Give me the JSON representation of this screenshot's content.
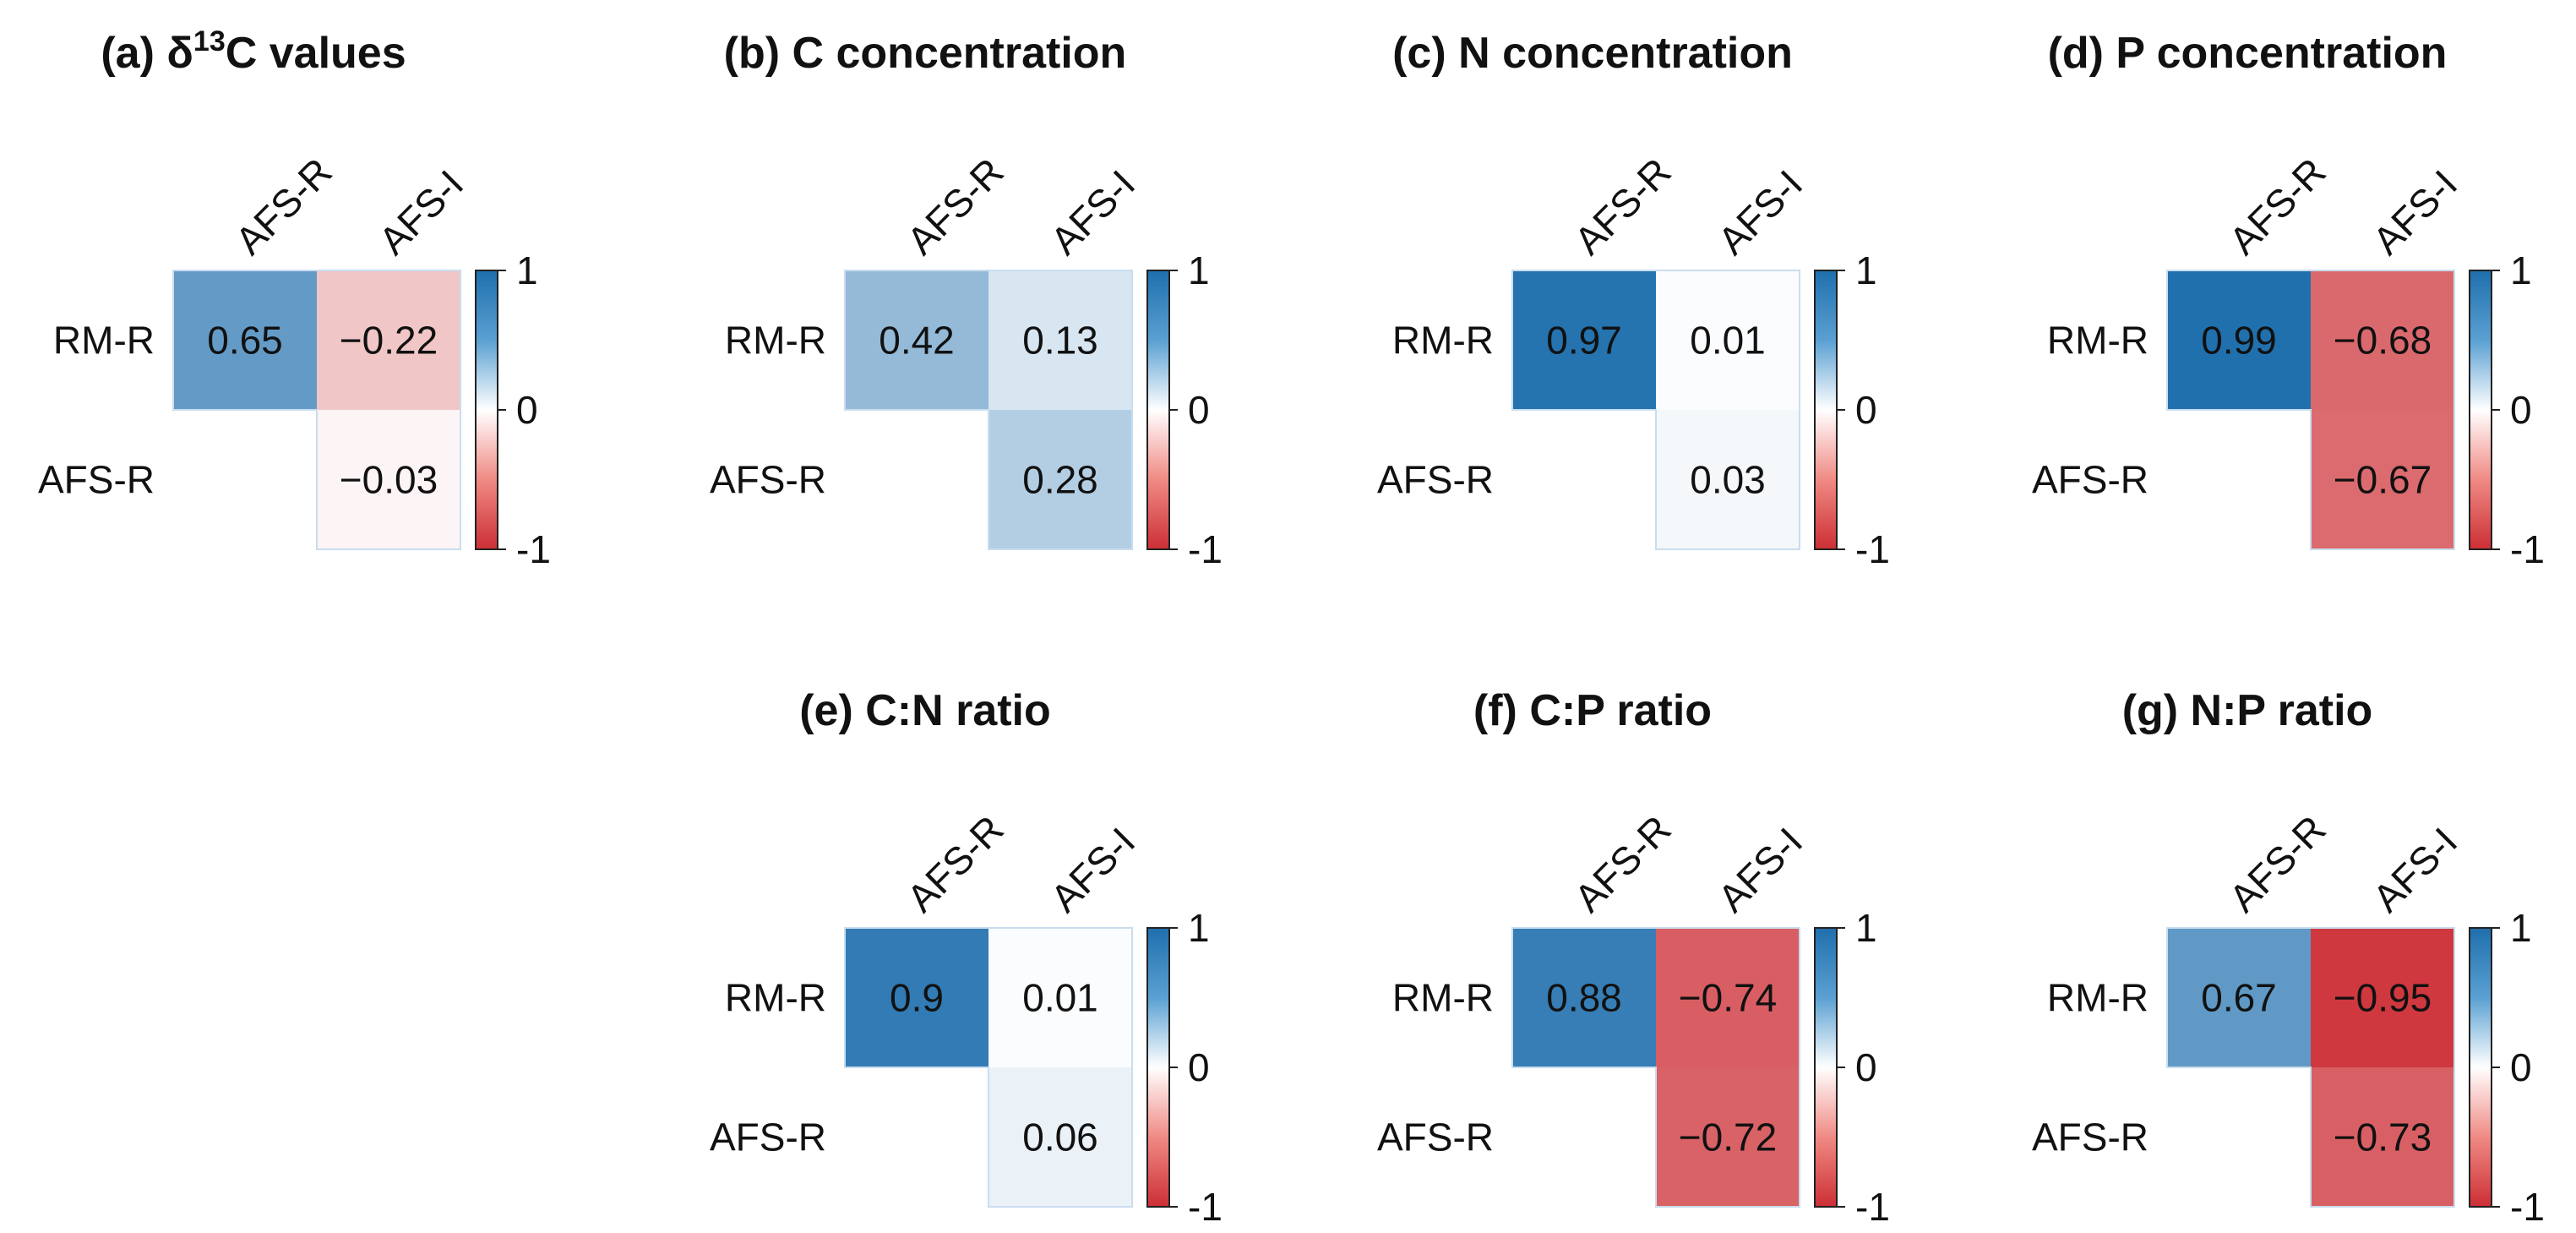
{
  "colors": {
    "positive": "#1f6fad",
    "neutral": "#ffffff",
    "negative": "#cc2f35",
    "text": "#111111"
  },
  "chart_data": [
    {
      "type": "heatmap",
      "title": "(a) δ13C values",
      "title_parts": {
        "prefix": "(a) δ",
        "superscript": "13",
        "suffix": "C values"
      },
      "row_labels": [
        "RM-R",
        "AFS-R"
      ],
      "col_labels": [
        "AFS-R",
        "AFS-I"
      ],
      "cells": [
        {
          "row": 0,
          "col": 0,
          "value": 0.65,
          "label": "0.65"
        },
        {
          "row": 0,
          "col": 1,
          "value": -0.22,
          "label": "−0.22"
        },
        {
          "row": 1,
          "col": 1,
          "value": -0.03,
          "label": "−0.03"
        }
      ],
      "colorbar": {
        "min": -1,
        "max": 1,
        "ticks": [
          "1",
          "0",
          "-1"
        ]
      }
    },
    {
      "type": "heatmap",
      "title": "(b) C concentration",
      "row_labels": [
        "RM-R",
        "AFS-R"
      ],
      "col_labels": [
        "AFS-R",
        "AFS-I"
      ],
      "cells": [
        {
          "row": 0,
          "col": 0,
          "value": 0.42,
          "label": "0.42"
        },
        {
          "row": 0,
          "col": 1,
          "value": 0.13,
          "label": "0.13"
        },
        {
          "row": 1,
          "col": 1,
          "value": 0.28,
          "label": "0.28"
        }
      ],
      "colorbar": {
        "min": -1,
        "max": 1,
        "ticks": [
          "1",
          "0",
          "-1"
        ]
      }
    },
    {
      "type": "heatmap",
      "title": "(c) N concentration",
      "row_labels": [
        "RM-R",
        "AFS-R"
      ],
      "col_labels": [
        "AFS-R",
        "AFS-I"
      ],
      "cells": [
        {
          "row": 0,
          "col": 0,
          "value": 0.97,
          "label": "0.97"
        },
        {
          "row": 0,
          "col": 1,
          "value": 0.01,
          "label": "0.01"
        },
        {
          "row": 1,
          "col": 1,
          "value": 0.03,
          "label": "0.03"
        }
      ],
      "colorbar": {
        "min": -1,
        "max": 1,
        "ticks": [
          "1",
          "0",
          "-1"
        ]
      }
    },
    {
      "type": "heatmap",
      "title": "(d) P concentration",
      "row_labels": [
        "RM-R",
        "AFS-R"
      ],
      "col_labels": [
        "AFS-R",
        "AFS-I"
      ],
      "cells": [
        {
          "row": 0,
          "col": 0,
          "value": 0.99,
          "label": "0.99"
        },
        {
          "row": 0,
          "col": 1,
          "value": -0.68,
          "label": "−0.68"
        },
        {
          "row": 1,
          "col": 1,
          "value": -0.67,
          "label": "−0.67"
        }
      ],
      "colorbar": {
        "min": -1,
        "max": 1,
        "ticks": [
          "1",
          "0",
          "-1"
        ]
      }
    },
    {
      "type": "heatmap",
      "title": "(e) C:N ratio",
      "row_labels": [
        "RM-R",
        "AFS-R"
      ],
      "col_labels": [
        "AFS-R",
        "AFS-I"
      ],
      "cells": [
        {
          "row": 0,
          "col": 0,
          "value": 0.9,
          "label": "0.9"
        },
        {
          "row": 0,
          "col": 1,
          "value": 0.01,
          "label": "0.01"
        },
        {
          "row": 1,
          "col": 1,
          "value": 0.06,
          "label": "0.06"
        }
      ],
      "colorbar": {
        "min": -1,
        "max": 1,
        "ticks": [
          "1",
          "0",
          "-1"
        ]
      }
    },
    {
      "type": "heatmap",
      "title": "(f) C:P ratio",
      "row_labels": [
        "RM-R",
        "AFS-R"
      ],
      "col_labels": [
        "AFS-R",
        "AFS-I"
      ],
      "cells": [
        {
          "row": 0,
          "col": 0,
          "value": 0.88,
          "label": "0.88"
        },
        {
          "row": 0,
          "col": 1,
          "value": -0.74,
          "label": "−0.74"
        },
        {
          "row": 1,
          "col": 1,
          "value": -0.72,
          "label": "−0.72"
        }
      ],
      "colorbar": {
        "min": -1,
        "max": 1,
        "ticks": [
          "1",
          "0",
          "-1"
        ]
      }
    },
    {
      "type": "heatmap",
      "title": "(g) N:P ratio",
      "row_labels": [
        "RM-R",
        "AFS-R"
      ],
      "col_labels": [
        "AFS-R",
        "AFS-I"
      ],
      "cells": [
        {
          "row": 0,
          "col": 0,
          "value": 0.67,
          "label": "0.67"
        },
        {
          "row": 0,
          "col": 1,
          "value": -0.95,
          "label": "−0.95"
        },
        {
          "row": 1,
          "col": 1,
          "value": -0.73,
          "label": "−0.73"
        }
      ],
      "colorbar": {
        "min": -1,
        "max": 1,
        "ticks": [
          "1",
          "0",
          "-1"
        ]
      }
    }
  ]
}
